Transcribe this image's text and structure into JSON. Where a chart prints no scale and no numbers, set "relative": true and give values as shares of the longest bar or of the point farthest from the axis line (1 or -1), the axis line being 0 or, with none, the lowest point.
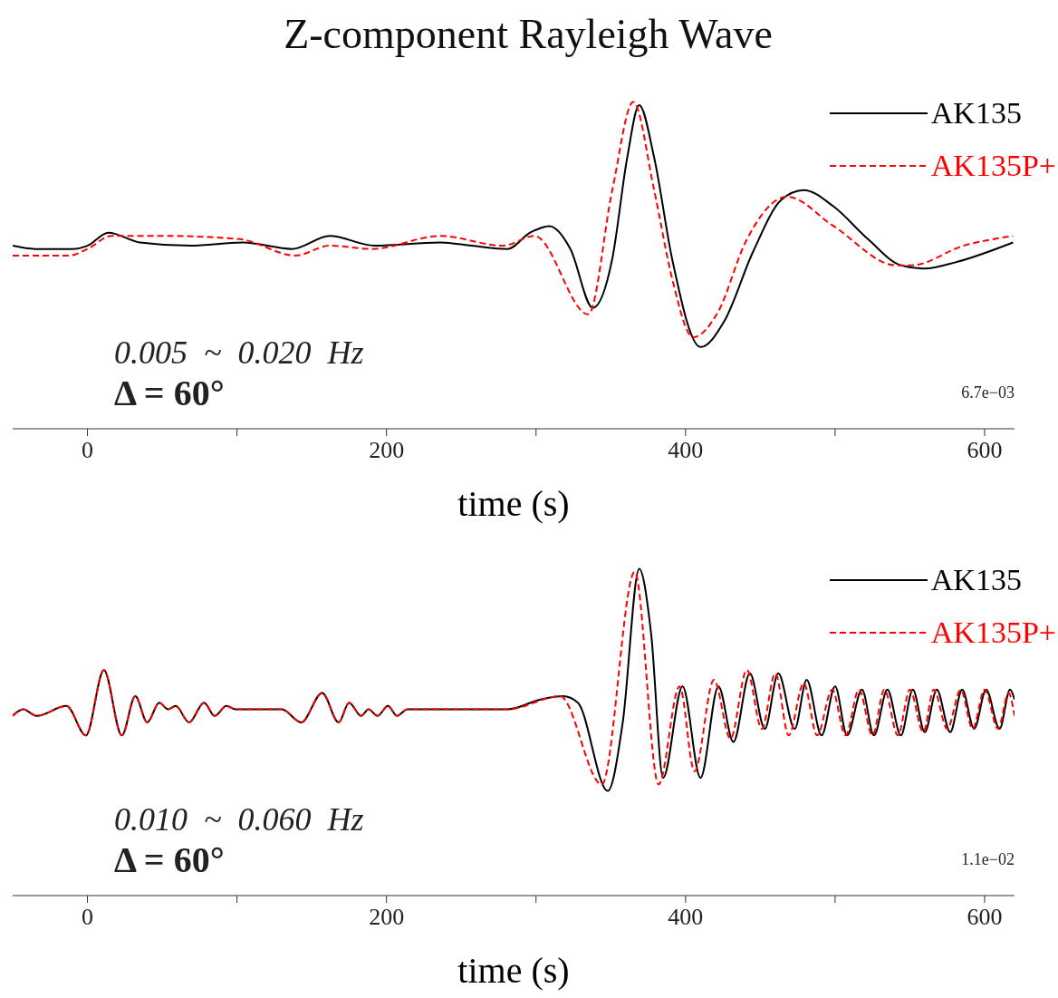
{
  "chart_data": [
    {
      "type": "line",
      "title": "Z-component Rayleigh Wave",
      "xlabel": "time (s)",
      "relative": true,
      "legend": "top right",
      "xlim": [
        -50,
        620
      ],
      "xticks": [
        0,
        {
          "value": 100,
          "label": null
        },
        200,
        {
          "value": 300,
          "label": null
        },
        400,
        {
          "value": 500,
          "label": null
        },
        600
      ],
      "annotations": [
        "0.005  ~  0.020  Hz",
        "Δ = 60°",
        "6.7e−03"
      ],
      "series": [
        {
          "name": "AK135",
          "color": "#000000",
          "line_style": "solid",
          "x": [
            -50,
            -35,
            -10,
            0,
            14,
            35,
            69,
            104,
            137,
            162,
            192,
            236,
            257,
            281,
            296,
            309,
            323,
            338,
            351,
            361,
            369,
            379,
            391,
            410,
            426,
            445,
            464,
            479,
            499,
            522,
            544,
            560,
            581,
            619
          ],
          "values": [
            0.56,
            0.55,
            0.55,
            0.56,
            0.6,
            0.57,
            0.56,
            0.57,
            0.55,
            0.59,
            0.56,
            0.57,
            0.56,
            0.55,
            0.6,
            0.62,
            0.55,
            0.37,
            0.52,
            0.83,
            0.99,
            0.83,
            0.52,
            0.25,
            0.33,
            0.54,
            0.7,
            0.73,
            0.68,
            0.58,
            0.5,
            0.49,
            0.51,
            0.57
          ]
        },
        {
          "name": "AK135P+",
          "color": "#ff0000",
          "line_style": "dashed",
          "x": [
            -50,
            -12,
            0,
            16,
            53,
            102,
            139,
            162,
            190,
            236,
            278,
            299,
            335,
            351,
            365,
            379,
            391,
            405,
            422,
            440,
            468,
            499,
            541,
            551,
            586,
            619
          ],
          "values": [
            0.53,
            0.53,
            0.55,
            0.59,
            0.59,
            0.58,
            0.53,
            0.56,
            0.55,
            0.59,
            0.56,
            0.59,
            0.35,
            0.73,
            1,
            0.73,
            0.46,
            0.28,
            0.36,
            0.57,
            0.71,
            0.62,
            0.5,
            0.5,
            0.56,
            0.59
          ]
        }
      ]
    },
    {
      "type": "line",
      "xlabel": "time (s)",
      "relative": true,
      "legend": "top right",
      "xlim": [
        -50,
        620
      ],
      "xticks": [
        0,
        {
          "value": 100,
          "label": null
        },
        200,
        {
          "value": 300,
          "label": null
        },
        400,
        {
          "value": 500,
          "label": null
        },
        600
      ],
      "annotations": [
        "0.010  ~  0.060  Hz",
        "Δ = 60°",
        "1.1e−02"
      ],
      "series": [
        {
          "name": "AK135",
          "color": "#000000",
          "line_style": "solid",
          "x": [
            -50,
            -43,
            -34,
            -14,
            -1,
            11,
            23,
            32,
            40,
            48,
            54,
            59,
            68,
            78,
            85,
            93,
            99,
            106,
            130,
            143,
            157,
            168,
            175,
            183,
            188,
            194,
            201,
            207,
            214,
            238,
            281,
            303,
            318,
            328,
            348,
            358,
            369,
            377,
            385,
            398,
            410,
            422,
            432,
            443,
            453,
            462,
            473,
            481,
            491,
            500,
            508,
            518,
            526,
            535,
            544,
            552,
            560,
            568,
            577,
            585,
            593,
            601,
            610,
            617,
            620
          ],
          "values": [
            0.55,
            0.57,
            0.55,
            0.58,
            0.49,
            0.69,
            0.49,
            0.61,
            0.53,
            0.59,
            0.57,
            0.58,
            0.53,
            0.59,
            0.55,
            0.58,
            0.57,
            0.57,
            0.57,
            0.53,
            0.62,
            0.53,
            0.59,
            0.55,
            0.57,
            0.55,
            0.58,
            0.55,
            0.57,
            0.57,
            0.57,
            0.6,
            0.61,
            0.59,
            0.32,
            0.53,
            1,
            0.8,
            0.36,
            0.64,
            0.36,
            0.64,
            0.47,
            0.68,
            0.51,
            0.68,
            0.51,
            0.66,
            0.49,
            0.64,
            0.49,
            0.63,
            0.49,
            0.63,
            0.49,
            0.63,
            0.5,
            0.63,
            0.5,
            0.63,
            0.51,
            0.63,
            0.51,
            0.63,
            0.6
          ]
        },
        {
          "name": "AK135P+",
          "color": "#ff0000",
          "line_style": "dashed",
          "x": [
            -50,
            -43,
            -34,
            -14,
            -1,
            11,
            23,
            32,
            40,
            48,
            54,
            59,
            68,
            78,
            85,
            93,
            99,
            106,
            130,
            143,
            157,
            168,
            175,
            183,
            188,
            194,
            201,
            207,
            214,
            238,
            281,
            316,
            344,
            366,
            382,
            396,
            406,
            419,
            430,
            441,
            451,
            460,
            469,
            479,
            488,
            498,
            507,
            516,
            525,
            533,
            542,
            550,
            559,
            566,
            575,
            584,
            592,
            600,
            609,
            616,
            620
          ],
          "values": [
            0.55,
            0.57,
            0.55,
            0.58,
            0.49,
            0.69,
            0.49,
            0.61,
            0.53,
            0.59,
            0.57,
            0.58,
            0.53,
            0.59,
            0.55,
            0.58,
            0.57,
            0.57,
            0.57,
            0.53,
            0.62,
            0.53,
            0.59,
            0.55,
            0.57,
            0.55,
            0.58,
            0.55,
            0.57,
            0.57,
            0.57,
            0.61,
            0.34,
            0.99,
            0.34,
            0.64,
            0.38,
            0.66,
            0.48,
            0.69,
            0.51,
            0.68,
            0.49,
            0.65,
            0.49,
            0.63,
            0.49,
            0.63,
            0.49,
            0.63,
            0.49,
            0.63,
            0.5,
            0.63,
            0.51,
            0.63,
            0.51,
            0.63,
            0.51,
            0.62,
            0.55
          ]
        }
      ]
    }
  ]
}
